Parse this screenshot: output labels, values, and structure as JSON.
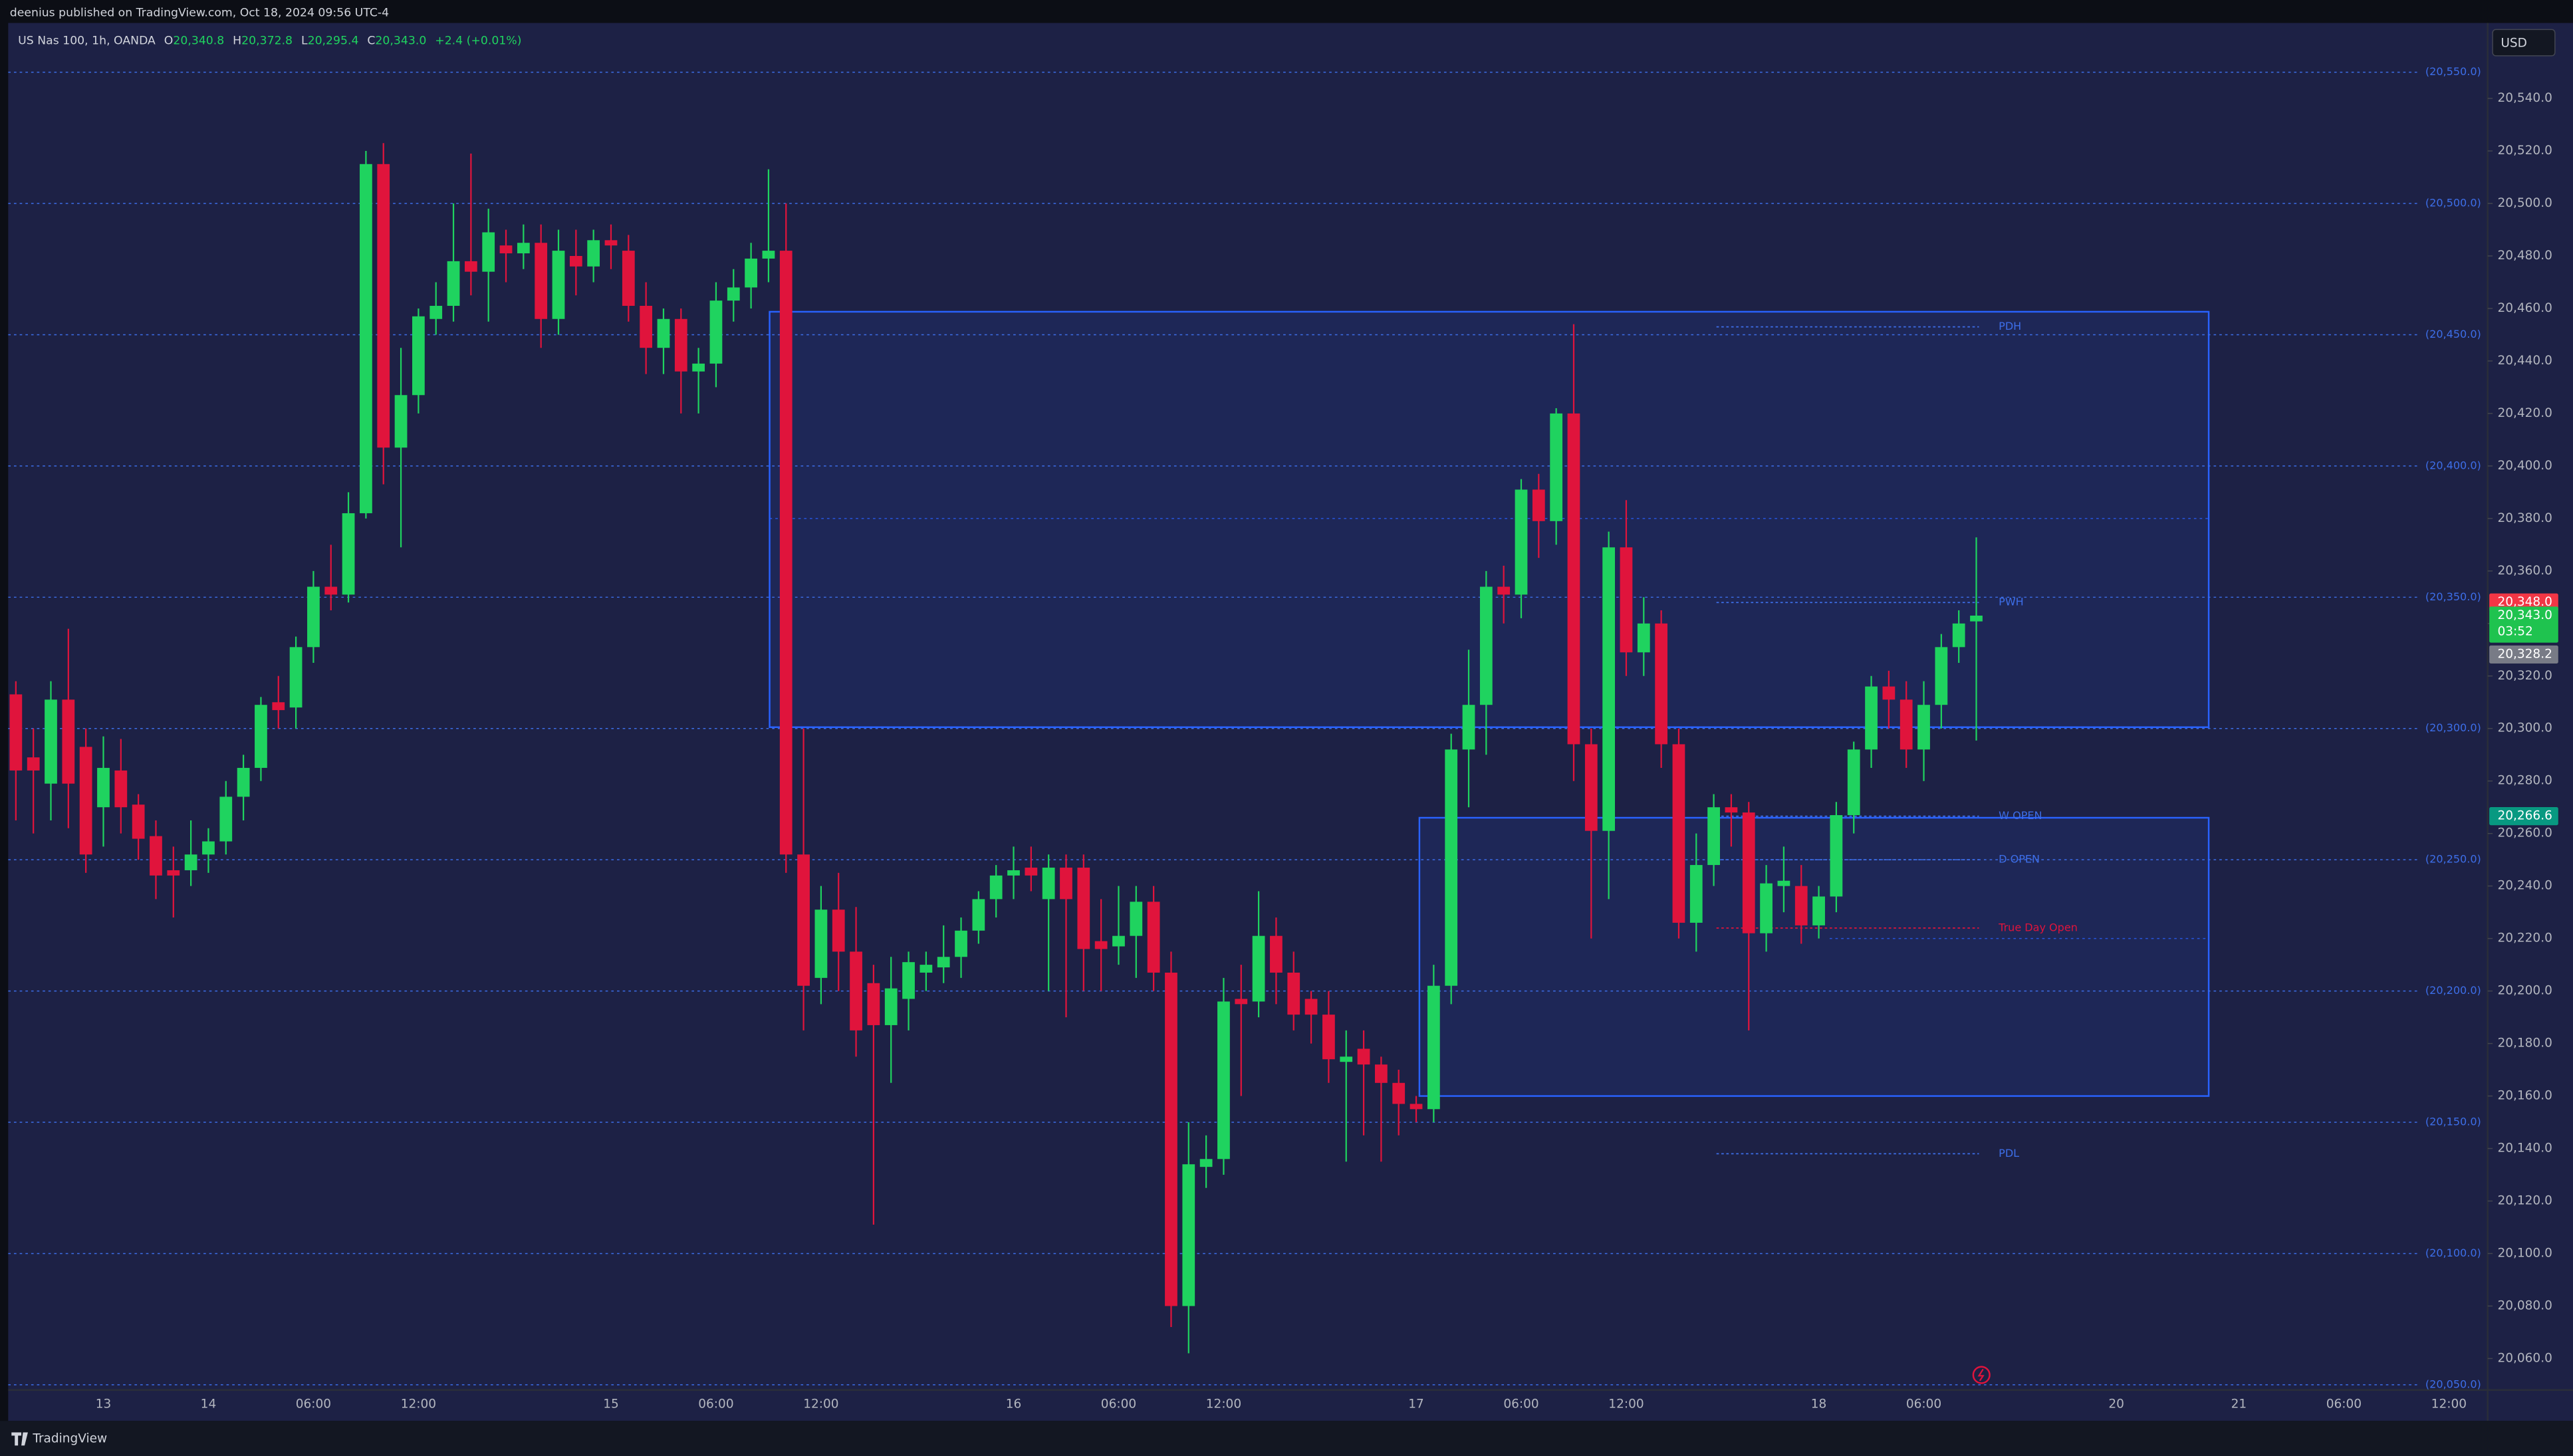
{
  "page": {
    "author_line": "deenius published on TradingView.com, Oct 18, 2024 09:56 UTC-4",
    "currency": "USD",
    "brand": "TradingView"
  },
  "legend": {
    "symbol": "US Nas 100, 1h, OANDA",
    "items": [
      {
        "key": "O",
        "text": "20,340.8"
      },
      {
        "key": "H",
        "text": "20,372.8"
      },
      {
        "key": "L",
        "text": "20,295.4"
      },
      {
        "key": "C",
        "text": "20,343.0"
      }
    ],
    "change": "+2.4 (+0.01%)"
  },
  "chart_data": {
    "type": "candlestick",
    "up_color": "#1fd35f",
    "down_color": "#e0143c",
    "grid": false,
    "ylim": [
      20048,
      20554
    ],
    "yticks": [
      {
        "value": 20060,
        "label": "20,060.0"
      },
      {
        "value": 20080,
        "label": "20,080.0"
      },
      {
        "value": 20100,
        "label": "20,100.0"
      },
      {
        "value": 20120,
        "label": "20,120.0"
      },
      {
        "value": 20140,
        "label": "20,140.0"
      },
      {
        "value": 20160,
        "label": "20,160.0"
      },
      {
        "value": 20180,
        "label": "20,180.0"
      },
      {
        "value": 20200,
        "label": "20,200.0"
      },
      {
        "value": 20220,
        "label": "20,220.0"
      },
      {
        "value": 20240,
        "label": "20,240.0"
      },
      {
        "value": 20260,
        "label": "20,260.0"
      },
      {
        "value": 20280,
        "label": "20,280.0"
      },
      {
        "value": 20300,
        "label": "20,300.0"
      },
      {
        "value": 20320,
        "label": "20,320.0"
      },
      {
        "value": 20340,
        "label": "20,340.0"
      },
      {
        "value": 20360,
        "label": "20,360.0"
      },
      {
        "value": 20380,
        "label": "20,380.0"
      },
      {
        "value": 20400,
        "label": "20,400.0"
      },
      {
        "value": 20420,
        "label": "20,420.0"
      },
      {
        "value": 20440,
        "label": "20,440.0"
      },
      {
        "value": 20460,
        "label": "20,460.0"
      },
      {
        "value": 20480,
        "label": "20,480.0"
      },
      {
        "value": 20500,
        "label": "20,500.0"
      },
      {
        "value": 20520,
        "label": "20,520.0"
      },
      {
        "value": 20540,
        "label": "20,540.0"
      }
    ],
    "categories": [
      null,
      null,
      null,
      null,
      null,
      "13",
      null,
      null,
      null,
      null,
      null,
      "14",
      null,
      null,
      null,
      null,
      null,
      "06:00",
      null,
      null,
      null,
      null,
      null,
      "12:00",
      null,
      null,
      null,
      null,
      null,
      null,
      null,
      null,
      null,
      null,
      "15",
      null,
      null,
      null,
      null,
      null,
      "06:00",
      null,
      null,
      null,
      null,
      null,
      "12:00",
      null,
      null,
      null,
      null,
      null,
      null,
      null,
      null,
      null,
      null,
      "16",
      null,
      null,
      null,
      null,
      null,
      "06:00",
      null,
      null,
      null,
      null,
      null,
      "12:00",
      null,
      null,
      null,
      null,
      null,
      null,
      null,
      null,
      null,
      null,
      "17",
      null,
      null,
      null,
      null,
      null,
      "06:00",
      null,
      null,
      null,
      null,
      null,
      "12:00",
      null,
      null,
      null,
      null,
      null,
      null,
      null,
      null,
      null,
      null,
      "18",
      null,
      null,
      null,
      null,
      null,
      "06:00",
      null,
      null,
      null,
      null,
      null,
      null,
      null,
      null,
      null,
      null,
      "20",
      null,
      null,
      null,
      null,
      null,
      null,
      "21",
      null,
      null,
      null,
      null,
      null,
      "06:00",
      null,
      null,
      null,
      null,
      null,
      "12:00",
      null,
      null
    ],
    "open": [
      20313,
      20289,
      20279,
      20311,
      20293,
      20270,
      20284,
      20271,
      20259,
      20246,
      20246,
      20252,
      20257,
      20274,
      20285,
      20310,
      20308,
      20331,
      20354,
      20351,
      20382,
      20515,
      20407,
      20427,
      20456,
      20461,
      20478,
      20474,
      20484,
      20481,
      20485,
      20456,
      20480,
      20476,
      20486,
      20482,
      20461,
      20445,
      20456,
      20436,
      20439,
      20463,
      20468,
      20479,
      20482,
      20252,
      20205,
      20231,
      20215,
      20203,
      20187,
      20197,
      20207,
      20209,
      20213,
      20223,
      20235,
      20244,
      20247,
      20235,
      20247,
      20247,
      20219,
      20217,
      20221,
      20234,
      20207,
      20080,
      20133,
      20136,
      20197,
      20196,
      20221,
      20207,
      20197,
      20191,
      20173,
      20178,
      20172,
      20165,
      20157,
      20155,
      20202,
      20292,
      20309,
      20354,
      20351,
      20391,
      20379,
      20420,
      20294,
      20261,
      20369,
      20329,
      20340,
      20294,
      20226,
      20248,
      20270,
      20268,
      20222,
      20240,
      20240,
      20225,
      20236,
      20267,
      20292,
      20316,
      20311,
      20292,
      20309,
      20331,
      20340.8,
      null,
      null,
      null,
      null,
      null,
      null,
      null,
      null,
      null,
      null,
      null,
      null,
      null,
      null,
      null,
      null,
      null,
      null,
      null,
      null,
      null,
      null,
      null,
      null,
      null,
      null,
      null,
      null,
      null
    ],
    "high": [
      20318,
      20300,
      20318,
      20338,
      20300,
      20297,
      20296,
      20275,
      20265,
      20255,
      20265,
      20262,
      20280,
      20290,
      20312,
      20320,
      20335,
      20360,
      20370,
      20390,
      20520,
      20523,
      20445,
      20460,
      20470,
      20500,
      20519,
      20498,
      20490,
      20492,
      20492,
      20490,
      20490,
      20490,
      20492,
      20488,
      20470,
      20460,
      20460,
      20445,
      20470,
      20475,
      20485,
      20513,
      20500,
      20300,
      20240,
      20245,
      20232,
      20210,
      20213,
      20215,
      20215,
      20225,
      20228,
      20238,
      20248,
      20255,
      20255,
      20252,
      20252,
      20252,
      20235,
      20240,
      20240,
      20240,
      20215,
      20150,
      20145,
      20205,
      20210,
      20238,
      20228,
      20215,
      20200,
      20200,
      20185,
      20185,
      20175,
      20170,
      20160,
      20210,
      20298,
      20330,
      20360,
      20362,
      20395,
      20397,
      20422,
      20454,
      20300,
      20375,
      20387,
      20350,
      20345,
      20300,
      20260,
      20275,
      20275,
      20272,
      20248,
      20255,
      20248,
      20240,
      20272,
      20295,
      20320,
      20322,
      20318,
      20318,
      20336,
      20345,
      20372.8,
      null,
      null,
      null,
      null,
      null,
      null,
      null,
      null,
      null,
      null,
      null,
      null,
      null,
      null,
      null,
      null,
      null,
      null,
      null,
      null,
      null,
      null,
      null,
      null,
      null,
      null,
      null,
      null,
      null
    ],
    "low": [
      20265,
      20260,
      20265,
      20262,
      20245,
      20255,
      20260,
      20250,
      20235,
      20228,
      20240,
      20245,
      20252,
      20265,
      20280,
      20300,
      20300,
      20325,
      20345,
      20348,
      20380,
      20393,
      20369,
      20420,
      20450,
      20455,
      20465,
      20455,
      20470,
      20475,
      20445,
      20450,
      20465,
      20470,
      20475,
      20455,
      20435,
      20435,
      20420,
      20420,
      20430,
      20455,
      20460,
      20470,
      20245,
      20185,
      20195,
      20200,
      20175,
      20111,
      20165,
      20185,
      20200,
      20203,
      20205,
      20218,
      20228,
      20235,
      20238,
      20200,
      20190,
      20200,
      20200,
      20210,
      20205,
      20200,
      20072,
      20062,
      20125,
      20130,
      20160,
      20190,
      20195,
      20185,
      20180,
      20165,
      20135,
      20145,
      20135,
      20145,
      20150,
      20150,
      20195,
      20270,
      20290,
      20340,
      20342,
      20365,
      20370,
      20280,
      20220,
      20235,
      20320,
      20320,
      20285,
      20220,
      20215,
      20240,
      20255,
      20185,
      20215,
      20230,
      20218,
      20220,
      20230,
      20260,
      20285,
      20300,
      20285,
      20280,
      20300,
      20325,
      20295.4,
      null,
      null,
      null,
      null,
      null,
      null,
      null,
      null,
      null,
      null,
      null,
      null,
      null,
      null,
      null,
      null,
      null,
      null,
      null,
      null,
      null,
      null,
      null,
      null,
      null,
      null,
      null,
      null,
      null
    ],
    "close": [
      20284,
      20284,
      20311,
      20279,
      20252,
      20285,
      20270,
      20258,
      20244,
      20244,
      20252,
      20257,
      20274,
      20285,
      20309,
      20307,
      20331,
      20354,
      20351,
      20382,
      20515,
      20407,
      20427,
      20457,
      20461,
      20478,
      20474,
      20489,
      20481,
      20485,
      20456,
      20482,
      20476,
      20486,
      20484,
      20461,
      20445,
      20456,
      20436,
      20439,
      20463,
      20468,
      20479,
      20482,
      20252,
      20202,
      20231,
      20215,
      20185,
      20187,
      20201,
      20211,
      20210,
      20213,
      20223,
      20235,
      20244,
      20246,
      20244,
      20247,
      20235,
      20216,
      20216,
      20221,
      20234,
      20207,
      20080,
      20134,
      20136,
      20196,
      20195,
      20221,
      20207,
      20191,
      20191,
      20174,
      20175,
      20172,
      20165,
      20157,
      20155,
      20202,
      20292,
      20309,
      20354,
      20351,
      20391,
      20379,
      20420,
      20294,
      20261,
      20369,
      20329,
      20340,
      20294,
      20226,
      20248,
      20270,
      20268,
      20222,
      20241,
      20242,
      20225,
      20236,
      20267,
      20292,
      20316,
      20311,
      20292,
      20309,
      20331,
      20340,
      20343,
      null,
      null,
      null,
      null,
      null,
      null,
      null,
      null,
      null,
      null,
      null,
      null,
      null,
      null,
      null,
      null,
      null,
      null,
      null,
      null,
      null,
      null,
      null,
      null,
      null,
      null,
      null,
      null,
      null
    ],
    "levels": [
      {
        "value": 20050,
        "label": "(20,050.0)"
      },
      {
        "value": 20100,
        "label": "(20,100.0)"
      },
      {
        "value": 20150,
        "label": "(20,150.0)"
      },
      {
        "value": 20200,
        "label": "(20,200.0)"
      },
      {
        "value": 20250,
        "label": "(20,250.0)"
      },
      {
        "value": 20300,
        "label": "(20,300.0)"
      },
      {
        "value": 20350,
        "label": "(20,350.0)"
      },
      {
        "value": 20400,
        "label": "(20,400.0)"
      },
      {
        "value": 20450,
        "label": "(20,450.0)"
      },
      {
        "value": 20500,
        "label": "(20,500.0)"
      },
      {
        "value": 20550,
        "label": "(20,550.0)"
      }
    ],
    "level_color": "#3d6ee8",
    "zones": [
      {
        "top": 20458.75,
        "bottom": 20300.5,
        "midline": 20380
      },
      {
        "top": 20266,
        "bottom": 20160,
        "midline": 20220
      }
    ],
    "zone_color": "#2962ff",
    "annotations": [
      {
        "text": "PDH",
        "value": 20453,
        "color": "#3d6ee8"
      },
      {
        "text": "PWH",
        "value": 20348,
        "color": "#3d6ee8"
      },
      {
        "text": "W OPEN",
        "value": 20266.6,
        "color": "#3d6ee8"
      },
      {
        "text": "D OPEN",
        "value": 20250,
        "color": "#3d6ee8"
      },
      {
        "text": "True Day Open",
        "value": 20224,
        "color": "#e0143c"
      },
      {
        "text": "PDL",
        "value": 20138,
        "color": "#3d6ee8"
      }
    ],
    "price_badges": [
      {
        "value": 20348,
        "label": "20,348.0",
        "color": "#f23645"
      },
      {
        "value": 20343,
        "label": "20,343.0",
        "sub": "03:52",
        "color": "#1fc34f"
      },
      {
        "value": 20328.2,
        "label": "20,328.2",
        "color": "#787b86"
      },
      {
        "value": 20266.6,
        "label": "20,266.6",
        "color": "#089981"
      }
    ]
  }
}
